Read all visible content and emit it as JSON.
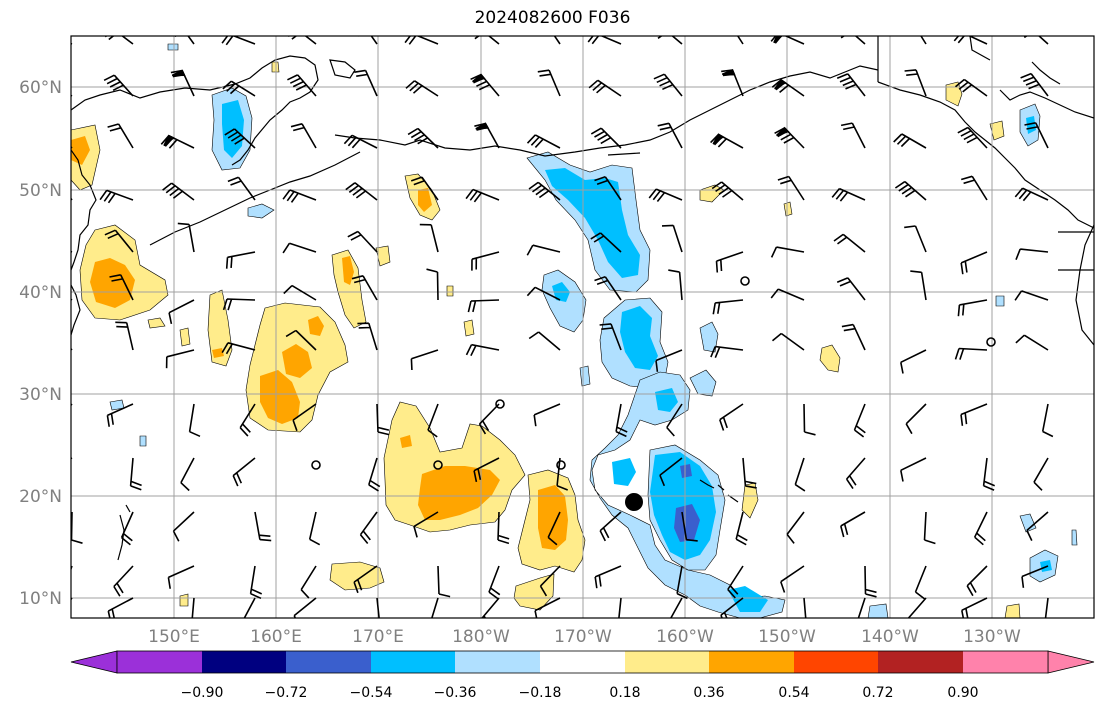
{
  "title": "2024082600 F036",
  "latitude_labels": [
    "10°N",
    "20°N",
    "30°N",
    "40°N",
    "50°N",
    "60°N"
  ],
  "longitude_labels": [
    "150°E",
    "160°E",
    "170°E",
    "180°W",
    "170°W",
    "160°W",
    "150°W",
    "140°W",
    "130°W"
  ],
  "colorbar": {
    "tick_labels": [
      "−0.90",
      "−0.72",
      "−0.54",
      "−0.36",
      "−0.18",
      "0.18",
      "0.36",
      "0.54",
      "0.72",
      "0.90"
    ],
    "colors": [
      "#9b30d9",
      "#000080",
      "#3a5fcd",
      "#00bfff",
      "#b0e0ff",
      "#ffffff",
      "#ffec8b",
      "#ffa500",
      "#ff4500",
      "#b22222",
      "#ff82ab"
    ]
  },
  "colors": {
    "frame": "#000000",
    "grid": "#a0a0a0",
    "coastline": "#000000",
    "label": "#808080"
  }
}
